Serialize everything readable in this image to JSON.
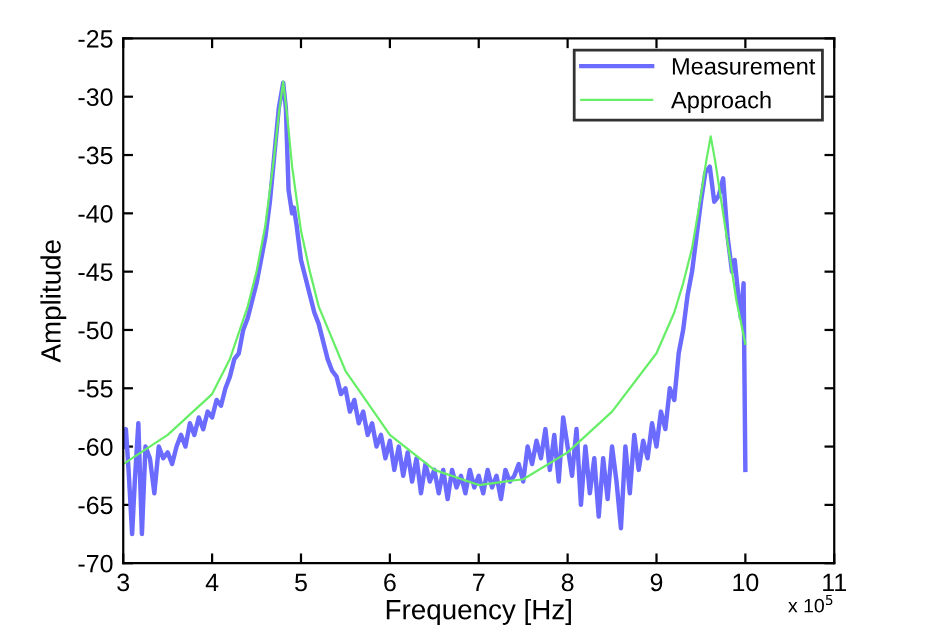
{
  "chart_data": {
    "type": "line",
    "xlabel": "Frequency [Hz]",
    "ylabel": "Amplitude",
    "annotations": [
      "x 10$^{5}$"
    ],
    "xlim": [
      3,
      11
    ],
    "xticks": [
      3,
      4,
      5,
      6,
      7,
      8,
      9,
      10,
      11
    ],
    "ylim": [
      -70,
      -25
    ],
    "yticks": [
      -70,
      -65,
      -60,
      -55,
      -50,
      -45,
      -40,
      -35,
      -30,
      -25
    ],
    "grid": false,
    "legend": "top right",
    "marker": "none",
    "line_style": "solid",
    "series": [
      {
        "name": "Measurement",
        "color": "#6b6bff",
        "x": [
          3.0,
          3.03,
          3.06,
          3.1,
          3.13,
          3.17,
          3.21,
          3.25,
          3.3,
          3.35,
          3.4,
          3.45,
          3.5,
          3.55,
          3.6,
          3.65,
          3.7,
          3.75,
          3.8,
          3.85,
          3.9,
          3.95,
          4.0,
          4.05,
          4.1,
          4.15,
          4.2,
          4.25,
          4.3,
          4.35,
          4.4,
          4.45,
          4.5,
          4.55,
          4.6,
          4.65,
          4.7,
          4.75,
          4.8,
          4.83,
          4.86,
          4.9,
          4.92,
          4.95,
          5.0,
          5.05,
          5.1,
          5.15,
          5.2,
          5.25,
          5.3,
          5.35,
          5.4,
          5.45,
          5.5,
          5.55,
          5.6,
          5.65,
          5.7,
          5.75,
          5.8,
          5.85,
          5.9,
          5.95,
          6.0,
          6.05,
          6.1,
          6.15,
          6.2,
          6.25,
          6.3,
          6.35,
          6.4,
          6.45,
          6.5,
          6.55,
          6.6,
          6.65,
          6.7,
          6.75,
          6.8,
          6.85,
          6.9,
          6.95,
          7.0,
          7.05,
          7.1,
          7.15,
          7.2,
          7.25,
          7.3,
          7.35,
          7.4,
          7.45,
          7.5,
          7.55,
          7.6,
          7.65,
          7.7,
          7.75,
          7.8,
          7.85,
          7.9,
          7.95,
          8.0,
          8.05,
          8.1,
          8.15,
          8.2,
          8.25,
          8.3,
          8.35,
          8.4,
          8.45,
          8.5,
          8.55,
          8.6,
          8.65,
          8.7,
          8.75,
          8.8,
          8.85,
          8.9,
          8.95,
          9.0,
          9.05,
          9.1,
          9.15,
          9.2,
          9.25,
          9.3,
          9.35,
          9.4,
          9.45,
          9.5,
          9.55,
          9.6,
          9.65,
          9.7,
          9.75,
          9.8,
          9.85,
          9.88,
          9.92,
          9.95,
          9.98,
          10.0
        ],
        "values": [
          -60,
          -58.5,
          -62,
          -67.5,
          -63,
          -58,
          -67.5,
          -60,
          -61,
          -64,
          -60,
          -61,
          -60.5,
          -61.5,
          -60,
          -59,
          -60,
          -58,
          -59,
          -57.5,
          -58.5,
          -57,
          -57.5,
          -56,
          -56.5,
          -55,
          -54,
          -52.5,
          -52,
          -50,
          -49,
          -47.5,
          -46,
          -44,
          -42,
          -39,
          -35,
          -31,
          -28.8,
          -31,
          -38,
          -40,
          -39.5,
          -41,
          -44,
          -45.5,
          -47,
          -48.5,
          -49.5,
          -51,
          -52.5,
          -53.5,
          -54,
          -55.5,
          -55,
          -57,
          -56,
          -58,
          -57,
          -59,
          -58,
          -60,
          -59,
          -61,
          -59.5,
          -62,
          -60,
          -62.5,
          -60.5,
          -63,
          -61,
          -64,
          -61.5,
          -63,
          -62,
          -64,
          -62,
          -64.5,
          -62,
          -63.5,
          -62.5,
          -64,
          -62,
          -63.5,
          -62.5,
          -64,
          -62,
          -63.5,
          -62.5,
          -64.5,
          -62,
          -63,
          -62.5,
          -61.5,
          -63,
          -60,
          -61.5,
          -59.5,
          -61,
          -58.5,
          -62,
          -59,
          -63,
          -57.5,
          -60,
          -62.5,
          -58.5,
          -65,
          -60,
          -64,
          -61,
          -66,
          -61,
          -64.5,
          -60,
          -63,
          -67,
          -60,
          -64,
          -59,
          -62,
          -59.5,
          -61,
          -58,
          -60,
          -57,
          -58.5,
          -55,
          -56,
          -52,
          -50,
          -47,
          -45,
          -42,
          -39,
          -36.5,
          -36,
          -39,
          -38.5,
          -37,
          -42,
          -45,
          -44,
          -47,
          -49,
          -46,
          -62
        ]
      },
      {
        "name": "Approach",
        "color": "#66ee66",
        "x": [
          3.0,
          3.5,
          4.0,
          4.2,
          4.4,
          4.5,
          4.6,
          4.7,
          4.75,
          4.8,
          4.85,
          4.9,
          5.0,
          5.1,
          5.2,
          5.5,
          6.0,
          6.5,
          7.0,
          7.5,
          8.0,
          8.5,
          9.0,
          9.2,
          9.3,
          9.4,
          9.5,
          9.56,
          9.61,
          9.66,
          9.75,
          9.85,
          9.9,
          10.0
        ],
        "values": [
          -61.5,
          -59,
          -55.5,
          -52.5,
          -48,
          -45,
          -41,
          -35,
          -31.5,
          -28.7,
          -32,
          -36,
          -41.5,
          -45,
          -48,
          -53.5,
          -59,
          -62,
          -63.3,
          -62.8,
          -60.5,
          -57,
          -52,
          -48.5,
          -46,
          -43,
          -38.5,
          -35.5,
          -33.4,
          -35.5,
          -40,
          -45,
          -47.5,
          -51.2
        ]
      }
    ]
  }
}
